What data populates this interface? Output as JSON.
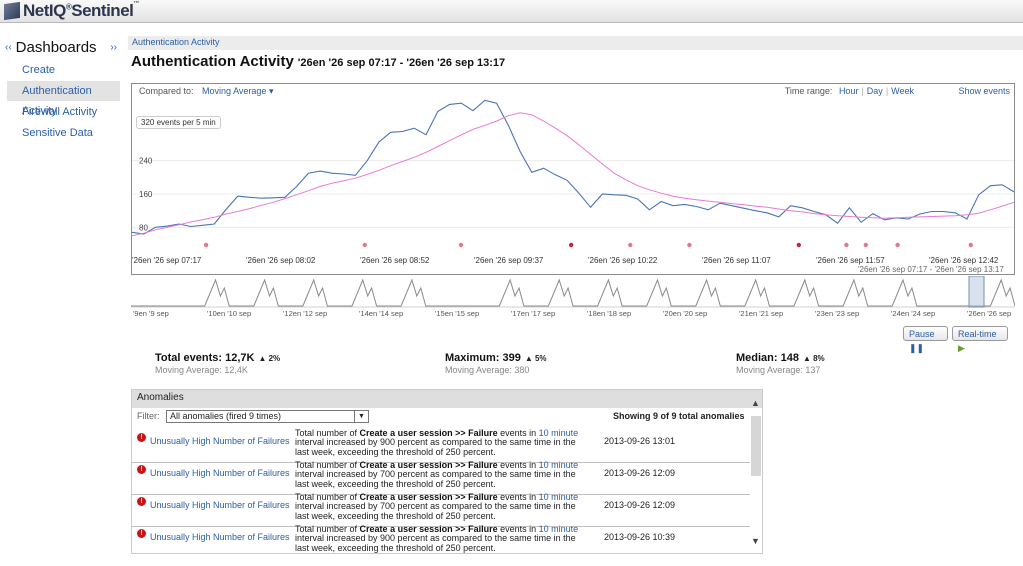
{
  "app": {
    "brand_prefix": "NetIQ",
    "brand_sup": "®",
    "brand_suffix": "Sentinel",
    "brand_tm": "™"
  },
  "sidebar": {
    "title": "Dashboards",
    "items": [
      {
        "label": "Create",
        "active": false
      },
      {
        "label": "Authentication Activity",
        "active": true
      },
      {
        "label": "Firewall Activity",
        "active": false
      },
      {
        "label": "Sensitive Data",
        "active": false
      }
    ]
  },
  "breadcrumb": "Authentication Activity",
  "page": {
    "title": "Authentication Activity",
    "range": "'26en '26 sep 07:17 - '26en '26 sep 13:17"
  },
  "chart_controls": {
    "compared_label": "Compared to:",
    "compared_value": "Moving Average",
    "time_range_label": "Time range:",
    "ranges": [
      "Hour",
      "Day",
      "Week"
    ],
    "show_events": "Show events",
    "rate": "320 events per 5 min",
    "overview_range": "'26en '26 sep 07:17 - '26en '26 sep 13:17"
  },
  "chart_data": {
    "type": "line",
    "xlabels": [
      "'26en '26 sep 07:17",
      "'26en '26 sep 08:02",
      "'26en '26 sep 08:52",
      "'26en '26 sep 09:37",
      "'26en '26 sep 10:22",
      "'26en '26 sep 11:07",
      "'26en '26 sep 11:57",
      "'26en '26 sep 12:42"
    ],
    "yticks": [
      80,
      160,
      240
    ],
    "ylim": [
      40,
      400
    ],
    "series": [
      {
        "color": "#4a74b5",
        "values": [
          68,
          64,
          80,
          83,
          88,
          82,
          85,
          88,
          123,
          155,
          152,
          150,
          151,
          152,
          178,
          210,
          215,
          210,
          208,
          205,
          240,
          285,
          308,
          310,
          318,
          302,
          358,
          375,
          378,
          360,
          385,
          378,
          325,
          262,
          212,
          222,
          206,
          193,
          162,
          128,
          160,
          158,
          157,
          148,
          122,
          142,
          132,
          135,
          130,
          122,
          138,
          132,
          126,
          120,
          115,
          105,
          132,
          127,
          118,
          110,
          90,
          127,
          92,
          113,
          98,
          103,
          100,
          112,
          118,
          118,
          115,
          100,
          158,
          180,
          182,
          165
        ]
      },
      {
        "color": "#e87ad6",
        "values": [
          60,
          66,
          74,
          80,
          86,
          93,
          98,
          104,
          112,
          118,
          125,
          133,
          140,
          149,
          158,
          168,
          178,
          186,
          192,
          198,
          207,
          217,
          228,
          238,
          248,
          260,
          274,
          288,
          302,
          315,
          325,
          335,
          348,
          355,
          350,
          335,
          318,
          300,
          278,
          255,
          232,
          210,
          194,
          180,
          170,
          162,
          155,
          150,
          146,
          143,
          140,
          137,
          134,
          131,
          128,
          124,
          120,
          117,
          113,
          110,
          108,
          106,
          104,
          103,
          102,
          103,
          104,
          105,
          106,
          107,
          108,
          110,
          114,
          122,
          131,
          140
        ]
      }
    ],
    "events": [
      3,
      10,
      15,
      21,
      22,
      25,
      36,
      42,
      48,
      56,
      59,
      63,
      72
    ],
    "event_colors": [
      "#e07a8a",
      "#e07a8a",
      "#e07a8a",
      "#e07a8a",
      "#c7243a",
      "#c7243a",
      "#e07a8a",
      "#c7243a",
      "#e07a8a",
      "#e07a8a",
      "#e07a8a",
      "#e07a8a",
      "#e07a8a"
    ],
    "event_positions": [
      0.084,
      0.264,
      0.373,
      0.498,
      0.565,
      0.632,
      0.756,
      0.81,
      0.832,
      0.868,
      0.951
    ],
    "event_dot_colors": [
      "#e07a8a",
      "#e07a8a",
      "#e07a8a",
      "#c7243a",
      "#e07a8a",
      "#e07a8a",
      "#c7243a",
      "#e07a8a",
      "#e07a8a",
      "#e07a8a",
      "#e07a8a"
    ]
  },
  "overview": {
    "labels": [
      "'9en '9 sep",
      "'10en '10 sep",
      "'12en '12 sep",
      "'14en '14 sep",
      "'15en '15 sep",
      "'17en '17 sep",
      "'18en '18 sep",
      "'20en '20 sep",
      "'21en '21 sep",
      "'23en '23 sep",
      "'24en '24 sep",
      "'26en '26 sep"
    ],
    "peaks": [
      1,
      2,
      3,
      4,
      5,
      7,
      8,
      9,
      10,
      11,
      12,
      13,
      14,
      15,
      17,
      18,
      19
    ]
  },
  "buttons": {
    "pause": "Pause",
    "realtime": "Real-time"
  },
  "stats": [
    {
      "label": "Total events: 12,7K",
      "delta": "2%",
      "ma": "Moving Average: 12,4K"
    },
    {
      "label": "Maximum: 399",
      "delta": "5%",
      "ma": "Moving Average: 380"
    },
    {
      "label": "Median: 148",
      "delta": "8%",
      "ma": "Moving Average: 137"
    }
  ],
  "anomalies": {
    "title": "Anomalies",
    "filter_label": "Filter:",
    "filter_value": "All anomalies (fired 9 times)",
    "showing": "Showing 9 of 9 total anomalies",
    "rows": [
      {
        "name": "Unusually High Number of Failures",
        "pre": "Total number of ",
        "bold": "Create a user session >> Failure",
        "mid": " events in ",
        "interval": "10 minute",
        "post": " interval increased by 900 percent as compared to the same time in the last week, exceeding the threshold of 250 percent.",
        "date": "2013-09-26 13:01"
      },
      {
        "name": "Unusually High Number of Failures",
        "pre": "Total number of ",
        "bold": "Create a user session >> Failure",
        "mid": " events in ",
        "interval": "10 minute",
        "post": " interval increased by 700 percent as compared to the same time in the last week, exceeding the threshold of 250 percent.",
        "date": "2013-09-26 12:09"
      },
      {
        "name": "Unusually High Number of Failures",
        "pre": "Total number of ",
        "bold": "Create a user session >> Failure",
        "mid": " events in ",
        "interval": "10 minute",
        "post": " interval increased by 700 percent as compared to the same time in the last week, exceeding the threshold of 250 percent.",
        "date": "2013-09-26 12:09"
      },
      {
        "name": "Unusually High Number of Failures",
        "pre": "Total number of ",
        "bold": "Create a user session >> Failure",
        "mid": " events in ",
        "interval": "10 minute",
        "post": " interval increased by 900 percent as compared to the same time in the last week, exceeding the threshold of 250 percent.",
        "date": "2013-09-26 10:39"
      }
    ]
  }
}
